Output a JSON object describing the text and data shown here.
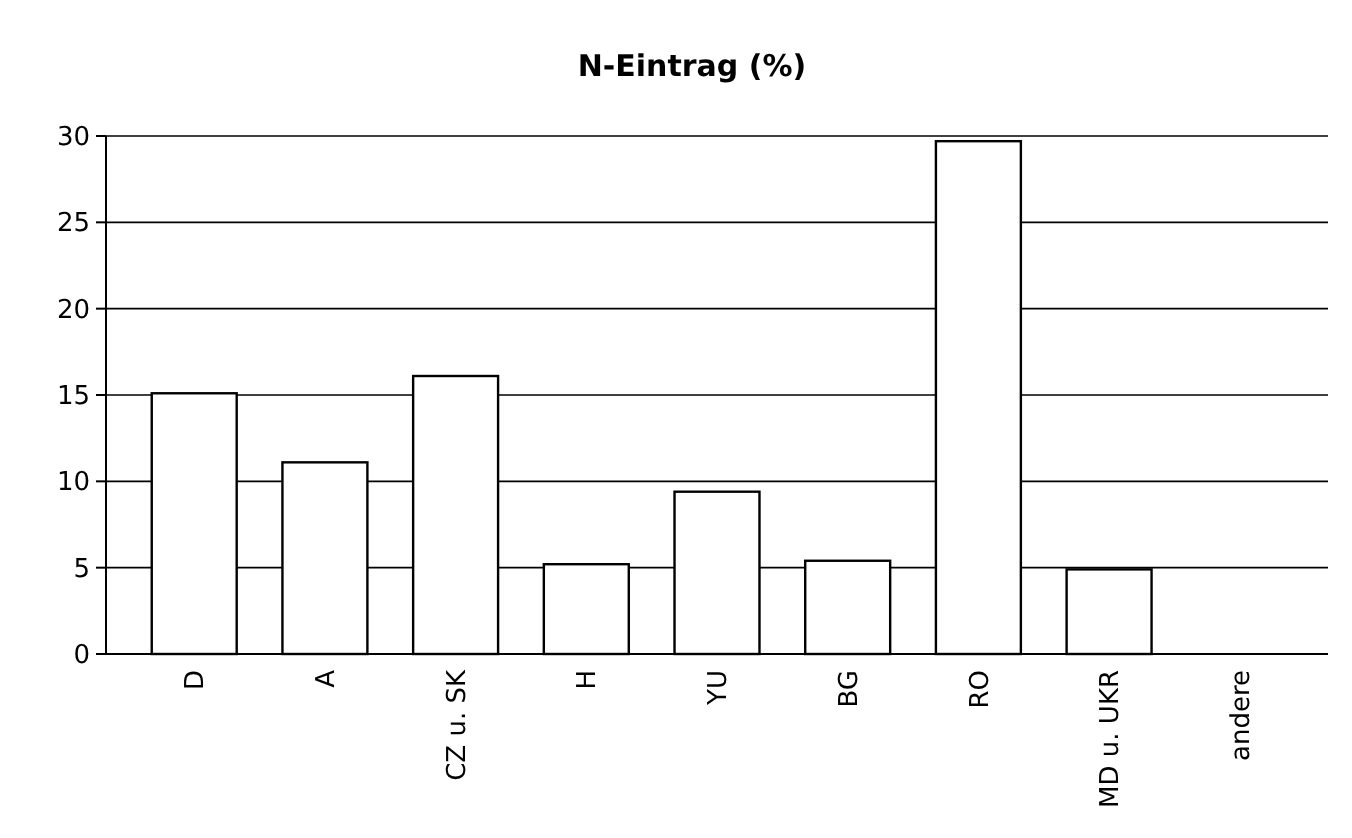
{
  "chart_data": {
    "type": "bar",
    "title": "N-Eintrag (%)",
    "categories": [
      "D",
      "A",
      "CZ u. SK",
      "H",
      "YU",
      "BG",
      "RO",
      "MD u. UKR",
      "andere"
    ],
    "values": [
      15.1,
      11.1,
      16.1,
      5.2,
      9.4,
      5.4,
      29.7,
      4.9,
      0
    ],
    "color": "#ffffff",
    "ylim": [
      0,
      30
    ],
    "yticks": [
      0,
      5,
      10,
      15,
      20,
      25,
      30
    ],
    "grid": "y"
  }
}
